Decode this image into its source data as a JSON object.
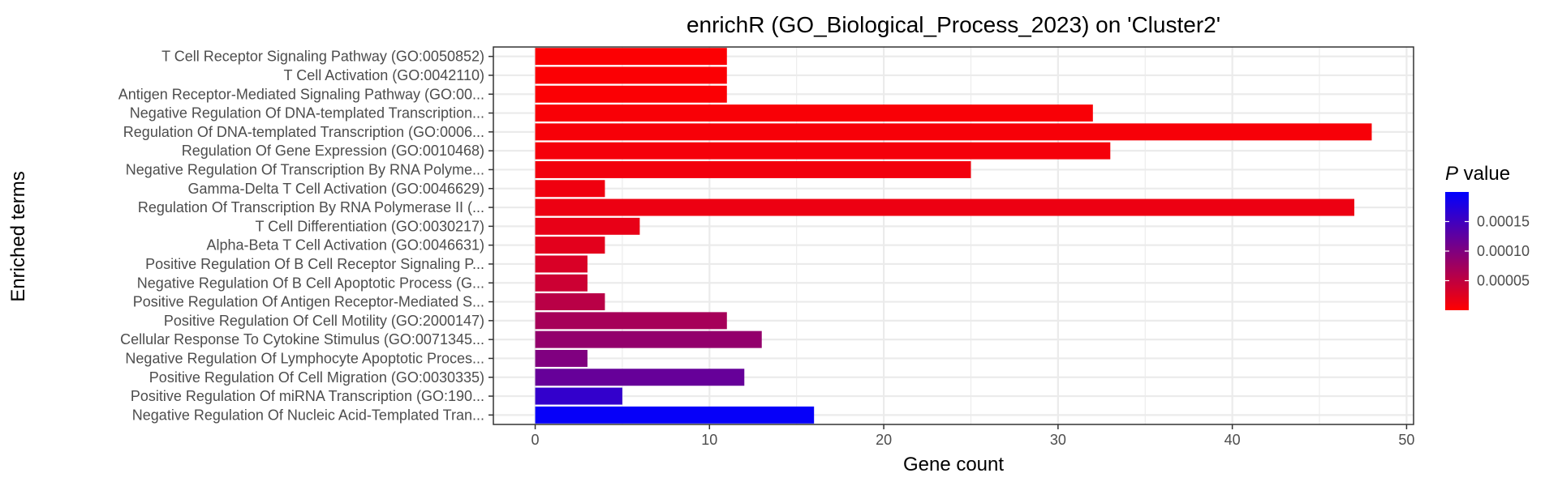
{
  "chart_data": {
    "type": "bar",
    "orientation": "horizontal",
    "title": "enrichR (GO_Biological_Process_2023) on 'Cluster2'",
    "xlabel": "Gene count",
    "ylabel": "Enriched terms",
    "xlim": [
      -2.4,
      50.4
    ],
    "x_ticks": [
      0,
      10,
      20,
      30,
      40,
      50
    ],
    "grid": true,
    "categories": [
      "T Cell Receptor Signaling Pathway (GO:0050852)",
      "T Cell Activation (GO:0042110)",
      "Antigen Receptor-Mediated Signaling Pathway (GO:00...",
      "Negative Regulation Of DNA-templated Transcription...",
      "Regulation Of DNA-templated Transcription (GO:0006...",
      "Regulation Of Gene Expression (GO:0010468)",
      "Negative Regulation Of Transcription By RNA Polyme...",
      "Gamma-Delta T Cell Activation (GO:0046629)",
      "Regulation Of Transcription By RNA Polymerase II (...",
      "T Cell Differentiation (GO:0030217)",
      "Alpha-Beta T Cell Activation (GO:0046631)",
      "Positive Regulation Of B Cell Receptor Signaling P...",
      "Negative Regulation Of B Cell Apoptotic Process (G...",
      "Positive Regulation Of Antigen Receptor-Mediated S...",
      "Positive Regulation Of Cell Motility (GO:2000147)",
      "Cellular Response To Cytokine Stimulus (GO:0071345...",
      "Negative Regulation Of Lymphocyte Apoptotic Proces...",
      "Positive Regulation Of Cell Migration (GO:0030335)",
      "Positive Regulation Of miRNA Transcription (GO:190...",
      "Negative Regulation Of Nucleic Acid-Templated Tran..."
    ],
    "values": [
      11,
      11,
      11,
      32,
      48,
      33,
      25,
      4,
      47,
      6,
      4,
      3,
      3,
      4,
      11,
      13,
      3,
      12,
      5,
      16
    ],
    "p_values": [
      2e-06,
      3e-06,
      3e-06,
      5e-06,
      6e-06,
      8e-06,
      1e-05,
      1.2e-05,
      1.4e-05,
      1.8e-05,
      2.2e-05,
      3e-05,
      4e-05,
      5.5e-05,
      7e-05,
      8.5e-05,
      0.0001,
      0.00012,
      0.00016,
      0.000195
    ],
    "legend": {
      "title_italic": "P",
      "title_rest": " value",
      "placement": "right",
      "range": [
        0.0,
        0.0002
      ],
      "ticks": [
        5e-05,
        0.0001,
        0.00015
      ],
      "tick_labels": [
        "0.00005",
        "0.00010",
        "0.00015"
      ],
      "color_low": "#FF0000",
      "color_high": "#0000FF"
    }
  }
}
